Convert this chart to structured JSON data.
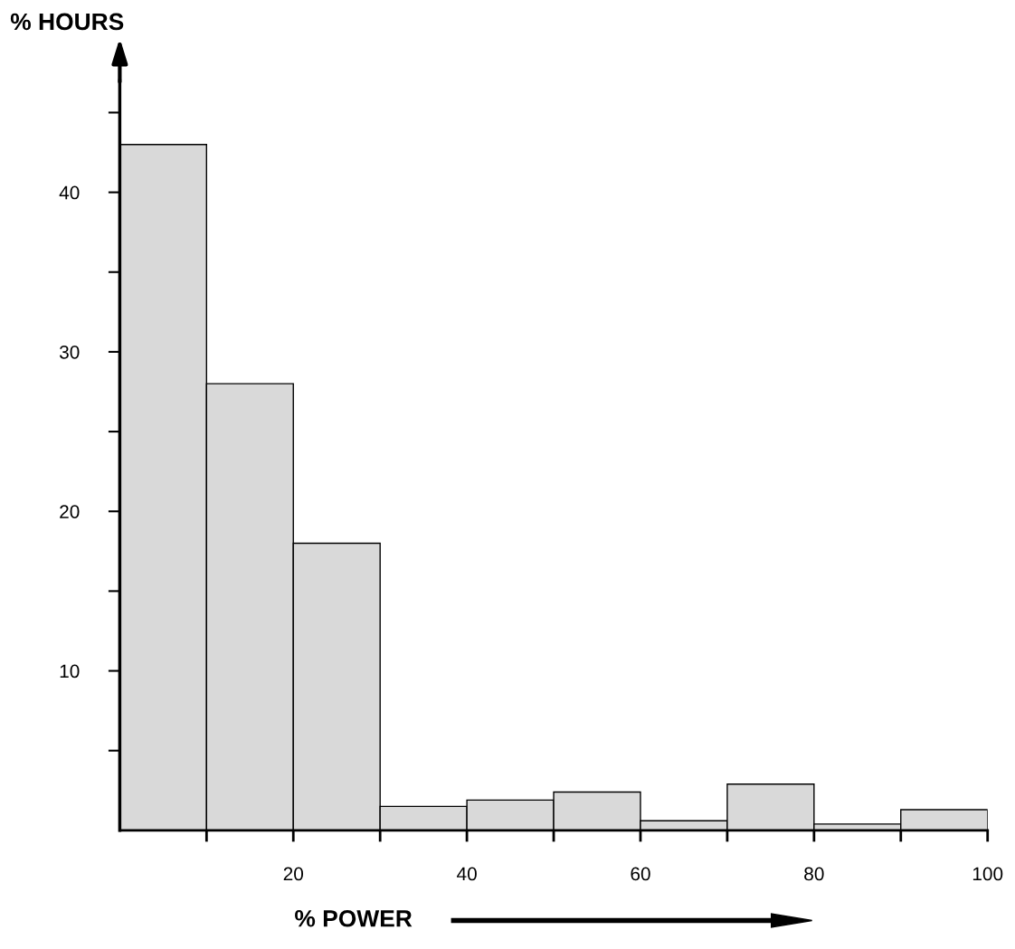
{
  "chart_data": {
    "type": "histogram",
    "xlabel": "% POWER",
    "ylabel": "% HOURS",
    "bins": [
      0,
      10,
      20,
      30,
      40,
      50,
      60,
      70,
      80,
      90,
      100
    ],
    "values": [
      43,
      28,
      18,
      1.5,
      1.9,
      2.4,
      0.6,
      2.9,
      0.4,
      1.3
    ],
    "color": "#d9d9d9",
    "xlim": [
      0,
      100
    ],
    "xticks": [
      {
        "value": 10,
        "label": null
      },
      20,
      {
        "value": 30,
        "label": null
      },
      40,
      {
        "value": 50,
        "label": null
      },
      60,
      {
        "value": 70,
        "label": null
      },
      80,
      {
        "value": 90,
        "label": null
      },
      100
    ],
    "ylim": [
      0,
      47
    ],
    "yticks": [
      {
        "value": 5,
        "label": null
      },
      10,
      {
        "value": 15,
        "label": null
      },
      20,
      {
        "value": 25,
        "label": null
      },
      30,
      {
        "value": 35,
        "label": null
      },
      40,
      {
        "value": 45,
        "label": null
      }
    ],
    "grid": false
  }
}
